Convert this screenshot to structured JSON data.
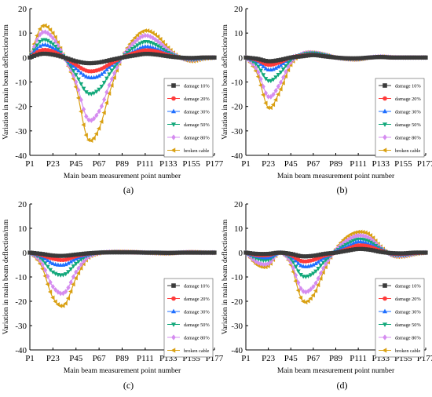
{
  "figure": {
    "series_labels": [
      "damage 10%",
      "damage 20%",
      "damage 30%",
      "damage 50%",
      "damage 80%",
      "broken cable"
    ],
    "series_colors": [
      "#3a3a3a",
      "#ff3b3b",
      "#1f6fff",
      "#12a87a",
      "#d58cf0",
      "#d9a012"
    ],
    "series_markers": [
      "square",
      "circle",
      "triangle-up",
      "triangle-down",
      "diamond",
      "triangle-left"
    ],
    "xlabel": "Main beam measurement point number",
    "ylabel": "Variation in main beam deflection/mm",
    "xticks": [
      "P1",
      "P23",
      "P45",
      "P67",
      "P89",
      "P111",
      "P133",
      "P155",
      "P177"
    ],
    "yticks": [
      "20",
      "10",
      "0",
      "-10",
      "-20",
      "-30",
      "-40"
    ]
  },
  "chart_data": [
    {
      "type": "line",
      "panel_label": "(a)",
      "ylim": [
        -40,
        20
      ],
      "legend_position": "right",
      "x": [
        1,
        12,
        23,
        34,
        45,
        56,
        67,
        78,
        89,
        100,
        111,
        122,
        133,
        144,
        155,
        166,
        177
      ],
      "series": [
        {
          "name": "damage 10%",
          "values": [
            0,
            1.5,
            1.2,
            0,
            -1.5,
            -2.3,
            -2,
            -1,
            0,
            0.8,
            1.5,
            1.2,
            0.5,
            0,
            -0.2,
            0,
            0
          ]
        },
        {
          "name": "damage 20%",
          "values": [
            0,
            3,
            2.5,
            0,
            -3,
            -5.5,
            -5,
            -2.5,
            0,
            1.8,
            3,
            2.5,
            1,
            0,
            -0.3,
            0,
            0
          ]
        },
        {
          "name": "damage 30%",
          "values": [
            0,
            5,
            4,
            0,
            -4.5,
            -8,
            -7.5,
            -3.5,
            0,
            2.5,
            4.5,
            3.5,
            1.5,
            0,
            -0.5,
            -0.2,
            0
          ]
        },
        {
          "name": "damage 50%",
          "values": [
            0,
            7,
            5.5,
            0,
            -7,
            -14.5,
            -13,
            -6,
            0,
            4,
            6.5,
            5,
            2,
            0,
            -0.8,
            -0.3,
            0
          ]
        },
        {
          "name": "damage 80%",
          "values": [
            0,
            10,
            8,
            0,
            -10,
            -25,
            -22,
            -10,
            0,
            6,
            9,
            7,
            3,
            0,
            -1,
            -0.4,
            0
          ]
        },
        {
          "name": "broken cable",
          "values": [
            0,
            12.5,
            10,
            0,
            -12,
            -33,
            -29,
            -13,
            0,
            7.5,
            11,
            9,
            4,
            0,
            -1.5,
            -0.6,
            0
          ]
        }
      ]
    },
    {
      "type": "line",
      "panel_label": "(b)",
      "ylim": [
        -40,
        20
      ],
      "legend_position": "right",
      "x": [
        1,
        12,
        23,
        34,
        45,
        56,
        67,
        78,
        89,
        100,
        111,
        122,
        133,
        144,
        155,
        166,
        177
      ],
      "series": [
        {
          "name": "damage 10%",
          "values": [
            0,
            -0.5,
            -1.5,
            -1,
            0,
            0.5,
            1,
            0.5,
            0,
            -0.3,
            -0.3,
            0,
            0.2,
            0,
            0,
            0,
            0
          ]
        },
        {
          "name": "damage 20%",
          "values": [
            0,
            -1,
            -3,
            -2,
            0,
            0.8,
            1.2,
            0.6,
            0,
            -0.3,
            -0.4,
            0,
            0.2,
            0,
            0,
            0,
            0
          ]
        },
        {
          "name": "damage 30%",
          "values": [
            0,
            -1.5,
            -5,
            -3.5,
            0,
            1,
            1.5,
            0.8,
            0,
            -0.4,
            -0.5,
            0,
            0.3,
            0,
            0,
            0,
            0
          ]
        },
        {
          "name": "damage 50%",
          "values": [
            0,
            -3,
            -9.5,
            -6.5,
            -1,
            1.2,
            1.8,
            1,
            0,
            -0.5,
            -0.6,
            0,
            0.3,
            0.1,
            0,
            0,
            0
          ]
        },
        {
          "name": "damage 80%",
          "values": [
            0,
            -5,
            -16,
            -11,
            -2,
            1.5,
            2,
            1.2,
            0,
            -0.6,
            -0.7,
            0,
            0.4,
            0.1,
            0,
            0,
            0
          ]
        },
        {
          "name": "broken cable",
          "values": [
            0,
            -6.5,
            -20.5,
            -14,
            -3,
            1.5,
            2,
            1.2,
            0,
            -0.7,
            -0.8,
            0,
            0.4,
            0.1,
            0,
            0,
            0
          ]
        }
      ]
    },
    {
      "type": "line",
      "panel_label": "(c)",
      "ylim": [
        -40,
        20
      ],
      "legend_position": "right",
      "x": [
        1,
        12,
        23,
        34,
        45,
        56,
        67,
        78,
        89,
        100,
        111,
        122,
        133,
        144,
        155,
        166,
        177
      ],
      "series": [
        {
          "name": "damage 10%",
          "values": [
            0,
            -0.5,
            -1.2,
            -1.3,
            -0.8,
            -0.3,
            0,
            0.1,
            0.1,
            0.1,
            0,
            0,
            -0.1,
            0,
            0,
            0,
            0
          ]
        },
        {
          "name": "damage 20%",
          "values": [
            0,
            -1,
            -2.5,
            -3,
            -1.5,
            -0.5,
            0,
            0.2,
            0.2,
            0.1,
            0,
            0,
            -0.1,
            0,
            0,
            0,
            0
          ]
        },
        {
          "name": "damage 30%",
          "values": [
            0,
            -1.5,
            -4.5,
            -5,
            -2.5,
            -0.8,
            0,
            0.2,
            0.2,
            0.1,
            0,
            0,
            -0.1,
            0,
            0,
            0,
            0
          ]
        },
        {
          "name": "damage 50%",
          "values": [
            0,
            -2.5,
            -8,
            -9,
            -4.5,
            -1.2,
            0,
            0.3,
            0.3,
            0.2,
            0,
            -0.1,
            -0.2,
            0,
            0.1,
            0,
            0
          ]
        },
        {
          "name": "damage 80%",
          "values": [
            0,
            -4,
            -14,
            -16.5,
            -8,
            -2,
            -0.2,
            0.3,
            0.3,
            0.2,
            0,
            -0.2,
            -0.3,
            0,
            0.2,
            0,
            0
          ]
        },
        {
          "name": "broken cable",
          "values": [
            0,
            -5.5,
            -18.5,
            -21.5,
            -10.5,
            -2.5,
            -0.3,
            0.3,
            0.4,
            0.3,
            0,
            -0.3,
            -0.4,
            0,
            0.3,
            0.1,
            0
          ]
        }
      ]
    },
    {
      "type": "line",
      "panel_label": "(d)",
      "ylim": [
        -40,
        20
      ],
      "legend_position": "right",
      "x": [
        1,
        12,
        23,
        34,
        45,
        56,
        67,
        78,
        89,
        100,
        111,
        122,
        133,
        144,
        155,
        166,
        177
      ],
      "series": [
        {
          "name": "damage 10%",
          "values": [
            0,
            -0.5,
            -0.5,
            0,
            -0.5,
            -1.5,
            -1.3,
            -0.5,
            0,
            0.8,
            1.5,
            1.2,
            0.3,
            -0.2,
            -0.3,
            0,
            0
          ]
        },
        {
          "name": "damage 20%",
          "values": [
            0,
            -1,
            -1,
            0,
            -1,
            -3.5,
            -3,
            -1.2,
            0,
            1.5,
            3,
            2.5,
            0.8,
            -0.4,
            -0.5,
            -0.2,
            0
          ]
        },
        {
          "name": "damage 30%",
          "values": [
            0,
            -1.5,
            -2,
            0,
            -1.5,
            -5.5,
            -5,
            -2,
            0.5,
            2.5,
            4.5,
            3.5,
            1.2,
            -0.5,
            -0.7,
            -0.3,
            0
          ]
        },
        {
          "name": "damage 50%",
          "values": [
            0,
            -2.5,
            -3,
            0,
            -2.5,
            -9.5,
            -8.5,
            -3.5,
            0.5,
            3.5,
            5.5,
            4.5,
            1.5,
            -0.8,
            -1,
            -0.4,
            0
          ]
        },
        {
          "name": "damage 80%",
          "values": [
            0,
            -4,
            -4.5,
            0,
            -4,
            -15.5,
            -14,
            -5.5,
            1,
            5,
            7,
            6,
            2,
            -1,
            -1.3,
            -0.5,
            0
          ]
        },
        {
          "name": "broken cable",
          "values": [
            0,
            -5,
            -5.5,
            0,
            -5,
            -19.5,
            -17.5,
            -7,
            1.5,
            6.5,
            8.5,
            7.5,
            2.5,
            -1.3,
            -1.6,
            -0.6,
            0
          ]
        }
      ]
    }
  ]
}
